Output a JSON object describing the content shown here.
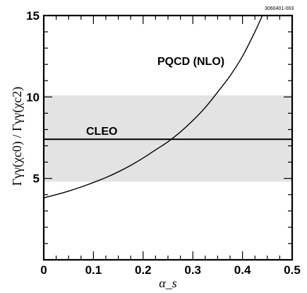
{
  "figure_id": "3060401-003",
  "chart_data": {
    "type": "line",
    "xlabel": "α_s",
    "ylabel": "Γγγ(χc0) / Γγγ(χc2)",
    "xlim": [
      0,
      0.5
    ],
    "ylim": [
      0,
      15
    ],
    "grid": false,
    "xticks": [
      {
        "value": 0,
        "label": "0"
      },
      {
        "value": 0.1,
        "label": "0.1"
      },
      {
        "value": 0.2,
        "label": "0.2"
      },
      {
        "value": 0.3,
        "label": "0.3"
      },
      {
        "value": 0.4,
        "label": "0.4"
      },
      {
        "value": 0.5,
        "label": "0.5"
      }
    ],
    "yticks": [
      {
        "value": 5,
        "label": "5"
      },
      {
        "value": 10,
        "label": "10"
      },
      {
        "value": 15,
        "label": "15"
      }
    ],
    "series": [
      {
        "name": "PQCD (NLO)",
        "color": "#000000",
        "points": [
          {
            "x": 0.0,
            "y": 3.8
          },
          {
            "x": 0.025,
            "y": 4.0
          },
          {
            "x": 0.05,
            "y": 4.22
          },
          {
            "x": 0.075,
            "y": 4.47
          },
          {
            "x": 0.1,
            "y": 4.75
          },
          {
            "x": 0.125,
            "y": 5.05
          },
          {
            "x": 0.15,
            "y": 5.4
          },
          {
            "x": 0.175,
            "y": 5.8
          },
          {
            "x": 0.2,
            "y": 6.25
          },
          {
            "x": 0.225,
            "y": 6.75
          },
          {
            "x": 0.25,
            "y": 7.25
          },
          {
            "x": 0.275,
            "y": 7.85
          },
          {
            "x": 0.3,
            "y": 8.55
          },
          {
            "x": 0.325,
            "y": 9.35
          },
          {
            "x": 0.35,
            "y": 10.3
          },
          {
            "x": 0.375,
            "y": 11.3
          },
          {
            "x": 0.4,
            "y": 12.5
          },
          {
            "x": 0.425,
            "y": 14.0
          },
          {
            "x": 0.44,
            "y": 15.0
          }
        ]
      },
      {
        "name": "CLEO",
        "color": "#000000",
        "value": 7.4,
        "band": [
          4.8,
          10.1
        ],
        "band_color": "#e3e3e3"
      }
    ],
    "annotations": [
      {
        "text": "PQCD (NLO)"
      },
      {
        "text": "CLEO"
      }
    ]
  }
}
